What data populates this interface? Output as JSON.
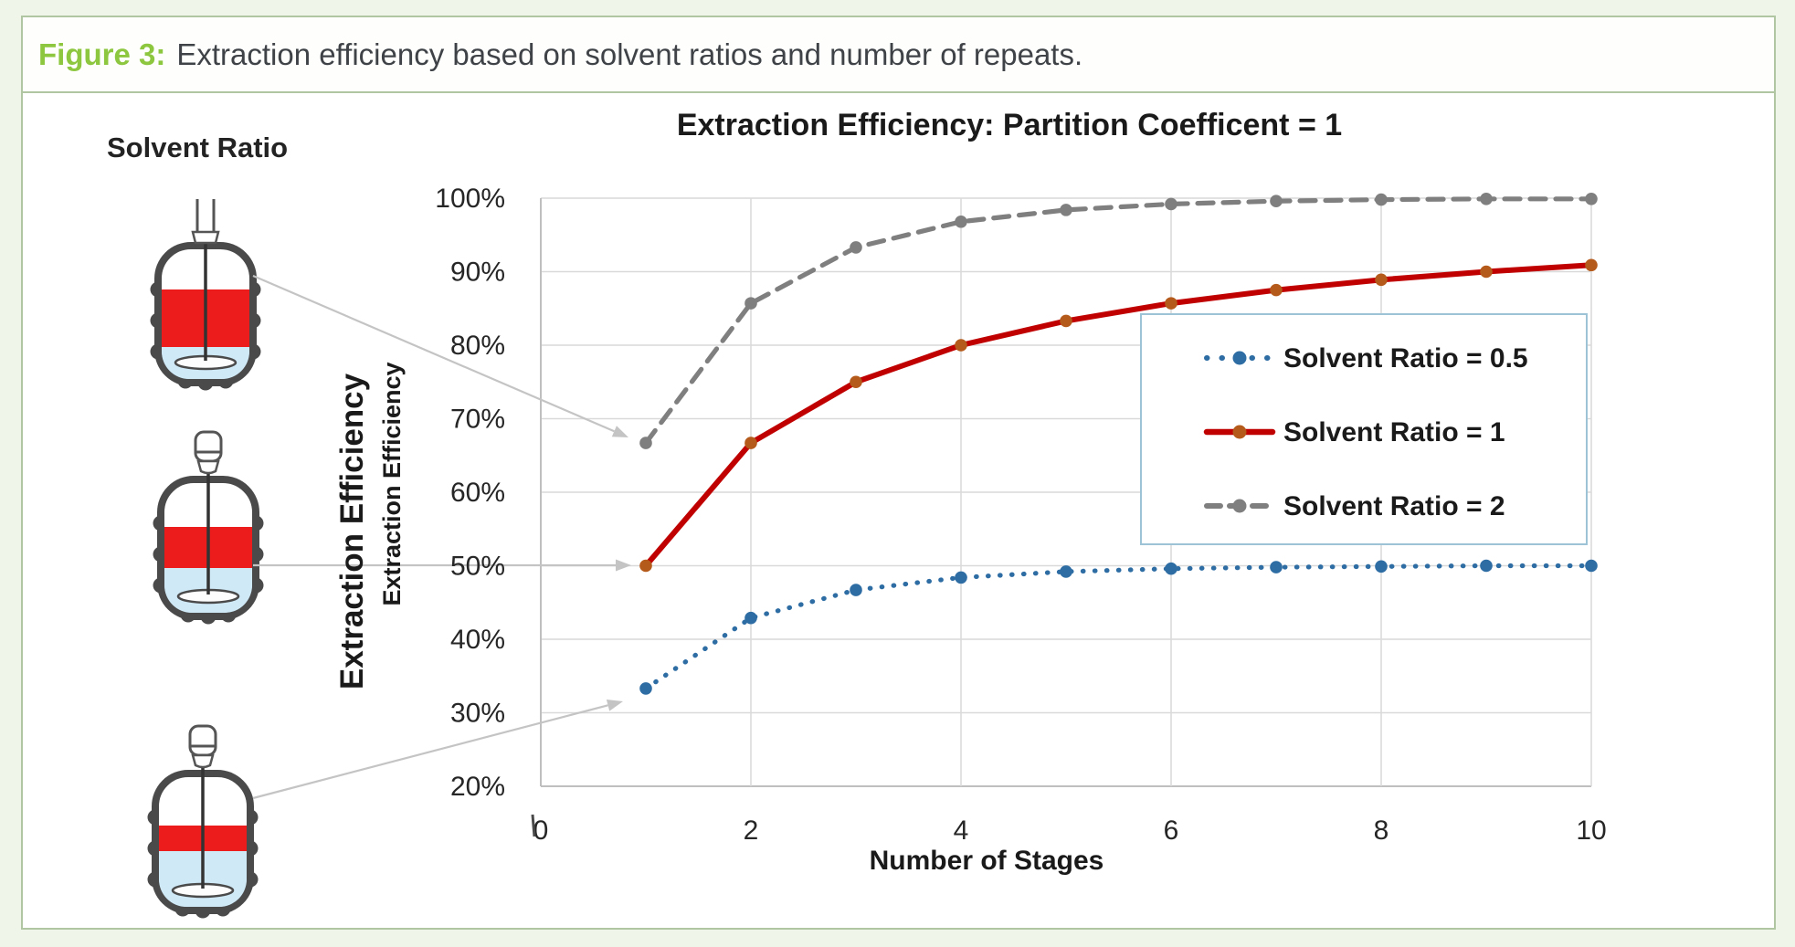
{
  "caption": {
    "label": "Figure 3:",
    "text": "Extraction efficiency based on solvent ratios and number of repeats."
  },
  "panel": {
    "heading": "Solvent Ratio"
  },
  "chart_data": {
    "type": "line",
    "title": "Extraction Efficiency: Partition Coefficent = 1",
    "xlabel": "Number of Stages",
    "ylabel": "Extraction Efficiency",
    "ylabel_secondary": "Extraction Efficiency",
    "xlim": [
      0,
      10
    ],
    "ylim": [
      20,
      100
    ],
    "grid": true,
    "legend_position": "center-right",
    "x_ticks": [
      "0",
      "2",
      "4",
      "6",
      "8",
      "10"
    ],
    "y_ticks": [
      "100%",
      "90%",
      "80%",
      "70%",
      "60%",
      "50%",
      "40%",
      "30%",
      "20%"
    ],
    "x": [
      1,
      2,
      3,
      4,
      5,
      6,
      7,
      8,
      9,
      10
    ],
    "series": [
      {
        "name": "Solvent Ratio = 0.5",
        "style": "dotted",
        "color": "#2e6da4",
        "marker_color": "#2e6da4",
        "values": [
          33.3,
          42.9,
          46.7,
          48.4,
          49.2,
          49.6,
          49.8,
          49.9,
          50.0,
          50.0
        ]
      },
      {
        "name": "Solvent Ratio = 1",
        "style": "solid",
        "color": "#c00000",
        "marker_color": "#b45a1a",
        "values": [
          50.0,
          66.7,
          75.0,
          80.0,
          83.3,
          85.7,
          87.5,
          88.9,
          90.0,
          90.9
        ]
      },
      {
        "name": "Solvent Ratio = 2",
        "style": "dashed",
        "color": "#7f7f7f",
        "marker_color": "#7f7f7f",
        "values": [
          66.7,
          85.7,
          93.3,
          96.8,
          98.4,
          99.2,
          99.6,
          99.8,
          99.9,
          99.9
        ]
      }
    ]
  },
  "colors": {
    "accent_green": "#8dc63f",
    "figure_border": "#b0c5a2",
    "page_background": "#eff5e9",
    "legend_border": "#9dc3d6",
    "gridline": "#d9d9d9",
    "axis_line": "#bfbfbf",
    "arrow_gray": "#c4c4c4",
    "vessel_outline": "#4a4a4a",
    "solvent_red": "#ed1c1c",
    "carrier_blue": "#cfe9f7"
  }
}
